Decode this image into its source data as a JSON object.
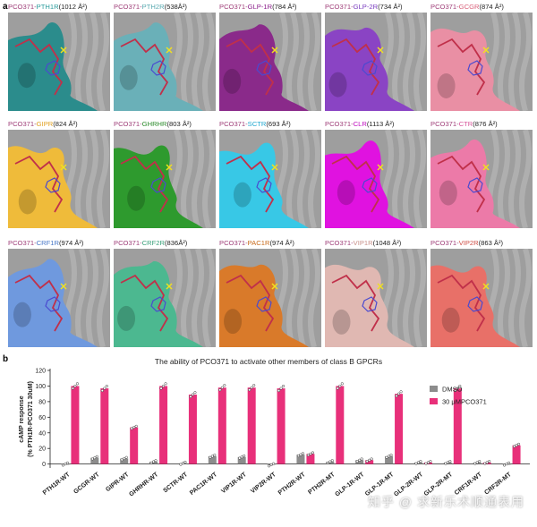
{
  "panel_a": {
    "letter": "a",
    "prefix": "PCO371",
    "panels": [
      {
        "receptor": "PTH1R",
        "area": "(1012 Å²)",
        "color": "#2b8c8c",
        "rcolor": "#2a9b9b"
      },
      {
        "receptor": "PTH2R",
        "area": "(538Å²)",
        "color": "#6ab0b8",
        "rcolor": "#5aa9b0"
      },
      {
        "receptor": "GLP-1R",
        "area": "(784 Å²)",
        "color": "#8a2a8a",
        "rcolor": "#8b1f8b"
      },
      {
        "receptor": "GLP-2R",
        "area": "(734 Å²)",
        "color": "#8a44c4",
        "rcolor": "#7b3fc0"
      },
      {
        "receptor": "GCGR",
        "area": "(874 Å²)",
        "color": "#e98fa4",
        "rcolor": "#d9607a"
      },
      {
        "receptor": "GIPR",
        "area": "(824 Å²)",
        "color": "#efbb3a",
        "rcolor": "#e0a020"
      },
      {
        "receptor": "GHRHR",
        "area": "(803 Å²)",
        "color": "#2e9a2e",
        "rcolor": "#2a8a2a"
      },
      {
        "receptor": "SCTR",
        "area": "(693 Å²)",
        "color": "#38c8e6",
        "rcolor": "#22a8d0"
      },
      {
        "receptor": "CLR",
        "area": "(1113 Å²)",
        "color": "#e012e0",
        "rcolor": "#c010c0"
      },
      {
        "receptor": "CTR",
        "area": "(876 Å²)",
        "color": "#ec7aa8",
        "rcolor": "#d8559a"
      },
      {
        "receptor": "CRF1R",
        "area": "(974 Å²)",
        "color": "#6f99de",
        "rcolor": "#4a78c8"
      },
      {
        "receptor": "CRF2R",
        "area": "(836Å²)",
        "color": "#4cb890",
        "rcolor": "#3aa07a"
      },
      {
        "receptor": "PAC1R",
        "area": "(974 Å²)",
        "color": "#d97a2a",
        "rcolor": "#c86a1a"
      },
      {
        "receptor": "VIP1R",
        "area": "(1048 Å²)",
        "color": "#e0b8b2",
        "rcolor": "#c8908a"
      },
      {
        "receptor": "VIP2R",
        "area": "(863 Å²)",
        "color": "#e87068",
        "rcolor": "#d05048"
      }
    ]
  },
  "panel_b": {
    "letter": "b",
    "chart_data": {
      "type": "bar",
      "title": "The ability of PCO371 to activate other members of class B GPCRs",
      "ylabel": "cAMP response",
      "ylabel2": "(% PTH1R-PCO371 30uM)",
      "ylim": [
        -5,
        120
      ],
      "yticks": [
        0,
        20,
        40,
        60,
        80,
        100,
        120
      ],
      "categories": [
        "PTH1R-WT",
        "GCGR-WT",
        "GIPR-WT",
        "GHRHR-WT",
        "SCTR-WT",
        "PAC1R-WT",
        "VIP1R-WT",
        "VIP2R-WT",
        "PTH2R-WT",
        "PTH2R-MT",
        "GLP-1R-WT",
        "GLP-1R-MT",
        "GLP-2R-WT",
        "GLP-2R-MT",
        "CRF1R-WT",
        "CRF2R-MT"
      ],
      "series": [
        {
          "name": "DMSO",
          "color": "#8c8c8c",
          "values": [
            0,
            8,
            7,
            3,
            1,
            10,
            9,
            -1,
            12,
            3,
            5,
            10,
            2,
            2,
            2,
            0
          ]
        },
        {
          "name": "30 μMPCO371",
          "color": "#e8307a",
          "values": [
            100,
            97,
            47,
            100,
            89,
            98,
            98,
            97,
            13,
            100,
            5,
            90,
            2,
            97,
            2,
            24
          ]
        }
      ]
    },
    "watermark": "知乎 @ 求新乐术顺通表用"
  },
  "colors": {
    "bg_grey": "#9e9e9e",
    "ligand": "#c0304a"
  }
}
